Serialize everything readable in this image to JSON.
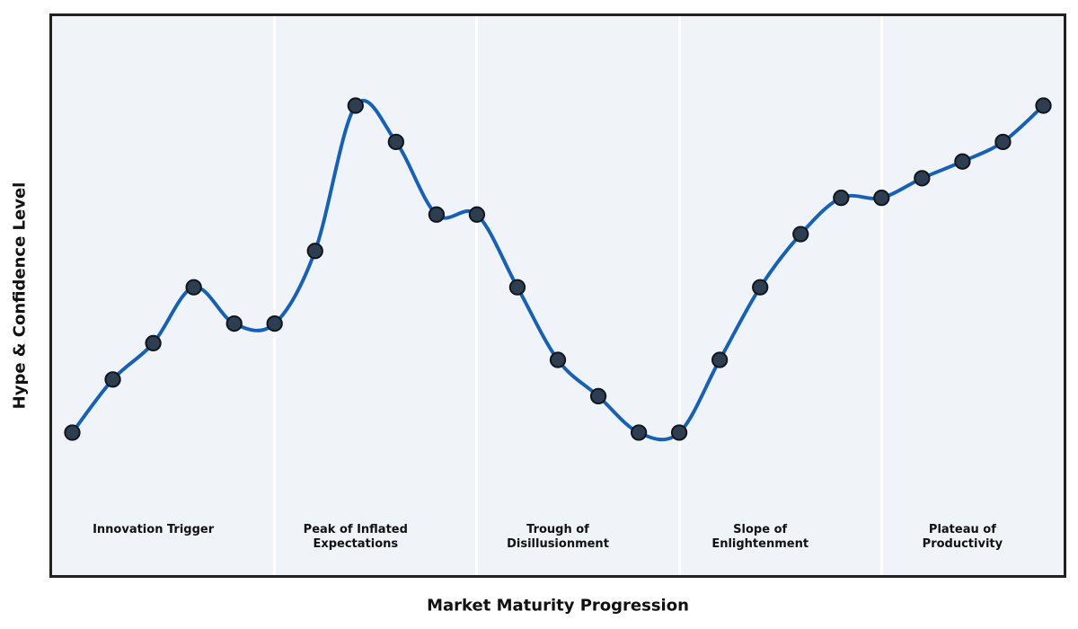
{
  "chart_data": {
    "type": "line",
    "title": "",
    "xlabel": "Market Maturity Progression",
    "ylabel": "Hype & Confidence Level",
    "x": [
      0,
      1,
      2,
      3,
      4,
      5,
      6,
      7,
      8,
      9,
      10,
      11,
      12,
      13,
      14,
      15,
      16,
      17,
      18,
      19,
      20,
      21,
      22,
      23,
      24
    ],
    "values": [
      25.5,
      35,
      41.5,
      51.5,
      45,
      45,
      58,
      84,
      77.5,
      64.5,
      64.5,
      51.5,
      38.5,
      32,
      25.5,
      25.5,
      38.5,
      51.5,
      61,
      67.5,
      67.5,
      71,
      74,
      77.5,
      84
    ],
    "xlim": [
      -0.5,
      24.5
    ],
    "ylim": [
      0,
      100
    ],
    "grid": false,
    "legend": "none",
    "ticks": "none",
    "smooth": true,
    "dividers_x": [
      5,
      10,
      15,
      20
    ],
    "phases": [
      {
        "label": "Innovation Trigger",
        "center_x": 2
      },
      {
        "label": "Peak of Inflated\nExpectations",
        "center_x": 7
      },
      {
        "label": "Trough of\nDisillusionment",
        "center_x": 12
      },
      {
        "label": "Slope of\nEnlightenment",
        "center_x": 17
      },
      {
        "label": "Plateau of\nProductivity",
        "center_x": 22
      }
    ],
    "colors": {
      "line": "#1560b8",
      "marker_fill": "#2c3e50",
      "marker_edge": "#10151c",
      "plot_background": "#f0f4f8",
      "phase_divider": "#ffffff",
      "plot_border": "#212121",
      "text": "#111111",
      "page_background": "#ffffff"
    },
    "style": {
      "line_width": 4,
      "marker_radius": 8.2,
      "marker_edge_width": 2
    }
  }
}
